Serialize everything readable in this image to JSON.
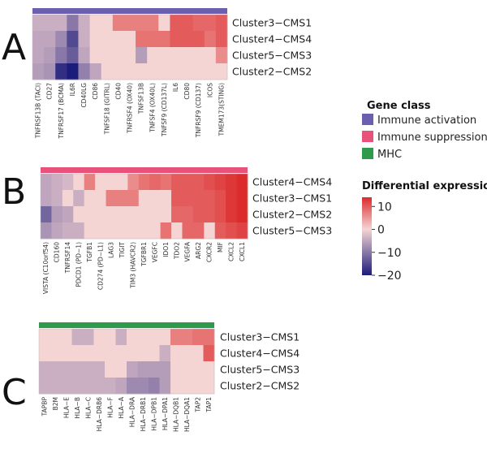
{
  "chart_data": {
    "type": "heatmap",
    "color_scale": {
      "low": -20,
      "mid": 0,
      "high": 14,
      "low_color": "#1c1c7a",
      "mid_color": "#f5d4d4",
      "high_color": "#dc2b2b"
    },
    "panels": [
      {
        "letter": "A",
        "gene_class": "Immune activation",
        "class_color": "#6b5fb0",
        "rows": [
          "Cluster3−CMS1",
          "Cluster4−CMS4",
          "Cluster5−CMS3",
          "Cluster2−CMS2"
        ],
        "columns": [
          "TNFRSF13B (TACI)",
          "CD27",
          "TNFRSF17 (BCMA)",
          "IL6R",
          "CD40LG",
          "CD86",
          "TNFSF18 (GITRL)",
          "CD40",
          "TNFRSF4 (OX40)",
          "TNFSF13B",
          "TNFSF4 (OX40L)",
          "TNFSF9 (CD137L)",
          "IL6",
          "CD80",
          "TNFRSF9 (CD137)",
          "ICOS",
          "TMEM173(STING)"
        ],
        "values": [
          [
            -4,
            -4,
            -4,
            -10,
            -4,
            0,
            0,
            7,
            7,
            7,
            7,
            0,
            10,
            10,
            9,
            9,
            10
          ],
          [
            -5,
            -5,
            -8,
            -15,
            -4,
            0,
            0,
            0,
            0,
            8,
            8,
            8,
            10,
            10,
            10,
            8,
            10
          ],
          [
            -5,
            -6,
            -10,
            -13,
            -5,
            0,
            0,
            0,
            0,
            -6,
            0,
            0,
            0,
            0,
            0,
            0,
            6
          ],
          [
            -6,
            -7,
            -18,
            -20,
            -9,
            -5,
            0,
            0,
            0,
            0,
            0,
            0,
            0,
            0,
            0,
            0,
            0
          ]
        ]
      },
      {
        "letter": "B",
        "gene_class": "Immune suppression",
        "class_color": "#e8527a",
        "rows": [
          "Cluster4−CMS4",
          "Cluster3−CMS1",
          "Cluster2−CMS2",
          "Cluster5−CMS3"
        ],
        "columns": [
          "VISTA (C10orf54)",
          "CD160",
          "TNFRSF14",
          "PDCD1 (PD−1)",
          "TGFB1",
          "CD274 (PD−L1)",
          "LAG3",
          "TIGIT",
          "TIM3 (HAVCR2)",
          "TGFBR1",
          "VEGFC",
          "IDO1",
          "TDO2",
          "VEGFA",
          "ARG2",
          "CXCR2",
          "MIF",
          "CXCL2",
          "CXCL1"
        ],
        "values": [
          [
            -5,
            -4,
            -3,
            0,
            7,
            0,
            0,
            0,
            6,
            8,
            9,
            8,
            10,
            10,
            10,
            11,
            12,
            13,
            14
          ],
          [
            -5,
            -4,
            0,
            -4,
            0,
            0,
            7,
            7,
            7,
            0,
            0,
            0,
            10,
            10,
            10,
            10,
            11,
            13,
            14
          ],
          [
            -12,
            -6,
            -5,
            0,
            0,
            0,
            0,
            0,
            0,
            0,
            0,
            0,
            9,
            9,
            10,
            10,
            11,
            13,
            14
          ],
          [
            -7,
            -5,
            -4,
            -4,
            0,
            0,
            0,
            0,
            0,
            0,
            0,
            8,
            0,
            9,
            9,
            0,
            10,
            11,
            12
          ]
        ]
      },
      {
        "letter": "C",
        "gene_class": "MHC",
        "class_color": "#2e9a4b",
        "rows": [
          "Cluster3−CMS1",
          "Cluster4−CMS4",
          "Cluster5−CMS3",
          "Cluster2−CMS2"
        ],
        "columns": [
          "TAPBP",
          "B2M",
          "HLA−E",
          "HLA−B",
          "HLA−C",
          "HLA−DRB6",
          "HLA−F",
          "HLA−A",
          "HLA−DRA",
          "HLA−DRB1",
          "HLA−DPB1",
          "HLA−DPA1",
          "HLA−DQB1",
          "HLA−DQA1",
          "TAP2",
          "TAP1"
        ],
        "values": [
          [
            0,
            0,
            0,
            -4,
            -4,
            0,
            0,
            -4,
            0,
            0,
            0,
            0,
            7,
            7,
            8,
            8
          ],
          [
            0,
            0,
            0,
            0,
            0,
            0,
            0,
            0,
            0,
            0,
            0,
            -4,
            0,
            0,
            0,
            10
          ],
          [
            -4,
            -4,
            -4,
            -4,
            -4,
            -4,
            0,
            0,
            -5,
            -6,
            -6,
            -6,
            0,
            0,
            0,
            0
          ],
          [
            -4,
            -4,
            -4,
            -4,
            -4,
            -4,
            -4,
            -5,
            -8,
            -8,
            -9,
            -6,
            0,
            0,
            0,
            0
          ]
        ]
      }
    ],
    "legend": {
      "gene_class_title": "Gene class",
      "gene_classes": [
        {
          "label": "Immune activation",
          "color": "#6b5fb0"
        },
        {
          "label": "Immune suppression",
          "color": "#e8527a"
        },
        {
          "label": "MHC",
          "color": "#2e9a4b"
        }
      ],
      "expression_title": "Differential expression",
      "ticks": [
        {
          "value": 10,
          "label": "10"
        },
        {
          "value": 0,
          "label": "0"
        },
        {
          "value": -10,
          "label": "−10"
        },
        {
          "value": -20,
          "label": "−20"
        }
      ]
    }
  }
}
